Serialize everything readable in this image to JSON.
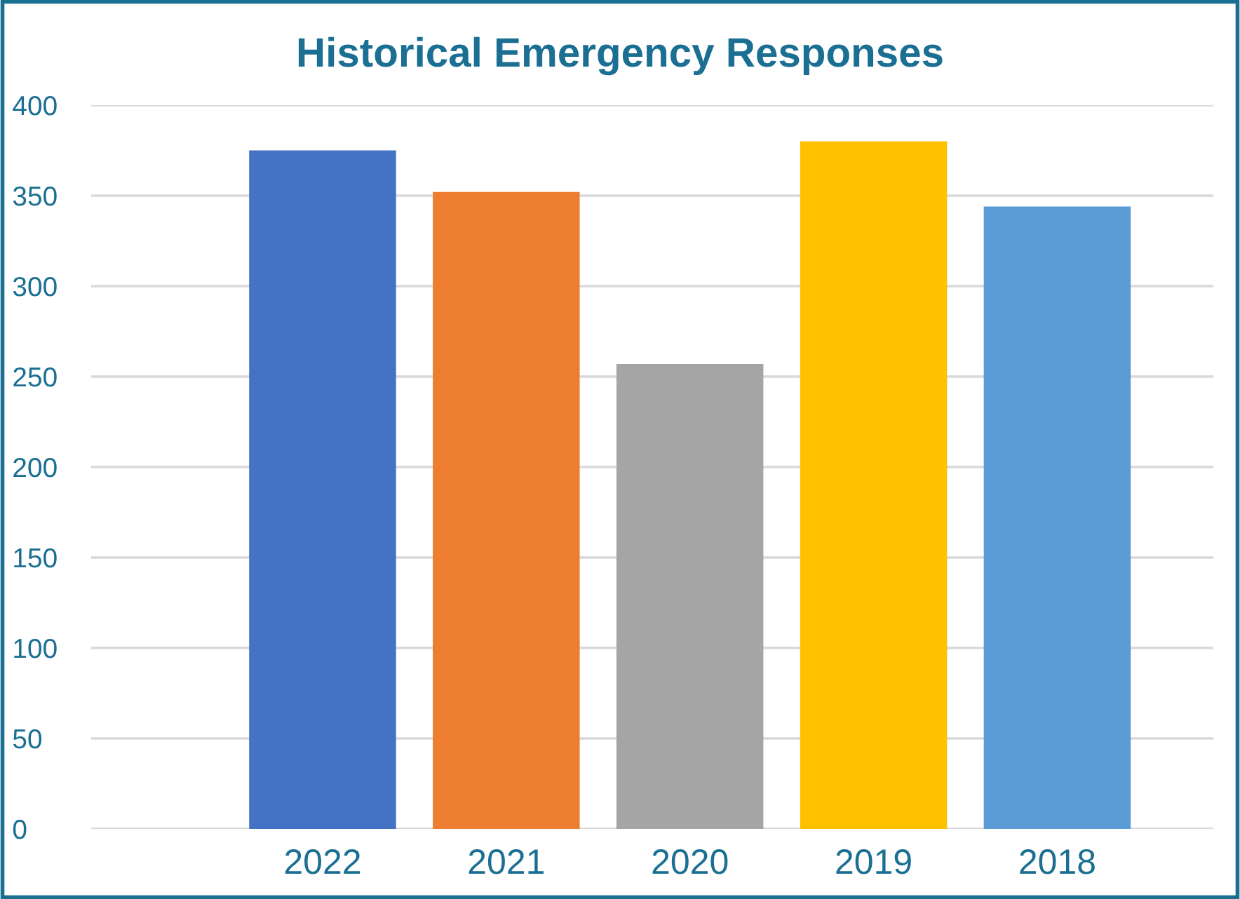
{
  "chart_data": {
    "type": "bar",
    "title": "Historical Emergency Responses",
    "categories": [
      "2022",
      "2021",
      "2020",
      "2019",
      "2018"
    ],
    "values": [
      375,
      352,
      257,
      380,
      344
    ],
    "colors": [
      "#4472c4",
      "#ed7d31",
      "#a5a5a5",
      "#ffc000",
      "#5b9bd5"
    ],
    "ylim": [
      0,
      400
    ],
    "yticks": [
      0,
      50,
      100,
      150,
      200,
      250,
      300,
      350,
      400
    ],
    "grid": "y",
    "legend": false
  }
}
